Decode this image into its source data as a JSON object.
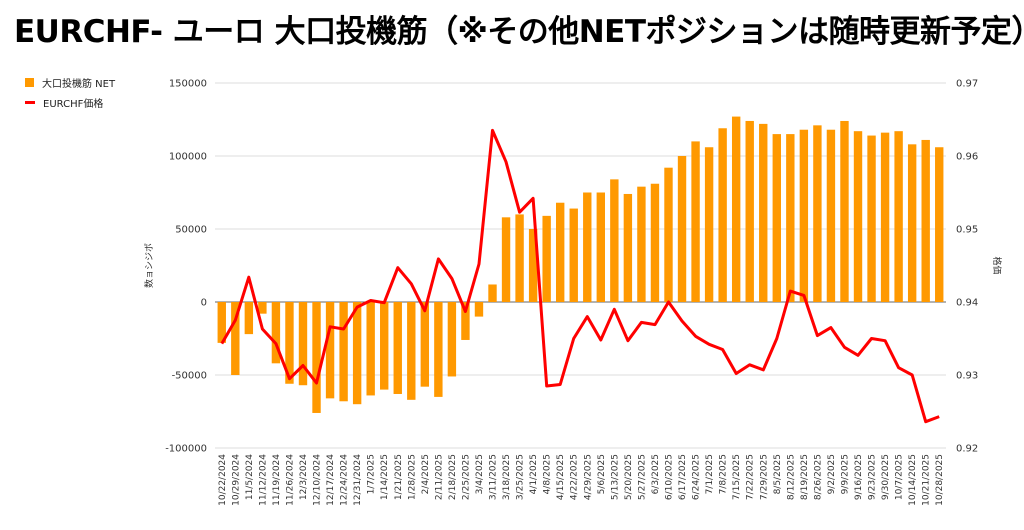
{
  "title": "EURCHF- ユーロ 大口投機筋（※その他NETポジションは随時更新予定）",
  "chart_data": {
    "type": "bar+line",
    "title": "EURCHF- ユーロ 大口投機筋（※その他NETポジションは随時更新予定）",
    "legend": [
      {
        "name": "大口投機筋  NET",
        "color": "#ff9900",
        "kind": "bar"
      },
      {
        "name": "EURCHF価格",
        "color": "#ff0000",
        "kind": "line"
      }
    ],
    "legend_position": "top-left",
    "y_left_label": "数ョシジポ",
    "y_right_label": "格価",
    "y_left_range": [
      -100000,
      150000
    ],
    "y_left_ticks": [
      "150000",
      "100000",
      "50000",
      "0",
      "-50000",
      "-100000"
    ],
    "y_right_range": [
      0.92,
      0.97
    ],
    "y_right_ticks": [
      "0.97",
      "0.96",
      "0.95",
      "0.94",
      "0.93",
      "0.92"
    ],
    "x_labels": [
      "10/22/2024",
      "10/29/2024",
      "11/5/2024",
      "11/12/2024",
      "11/19/2024",
      "11/26/2024",
      "12/3/2024",
      "12/10/2024",
      "12/17/2024",
      "12/24/2024",
      "12/31/2024",
      "1/7/2025",
      "1/14/2025",
      "1/21/2025",
      "1/28/2025",
      "2/4/2025",
      "2/11/2025",
      "2/18/2025",
      "2/25/2025",
      "3/4/2025",
      "3/11/2025",
      "3/18/2025",
      "3/25/2025",
      "4/1/2025",
      "4/8/2025",
      "4/15/2025",
      "4/22/2025",
      "4/29/2025",
      "5/6/2025",
      "5/13/2025",
      "5/20/2025",
      "5/27/2025",
      "6/3/2025",
      "6/10/2025",
      "6/17/2025",
      "6/24/2025",
      "7/1/2025",
      "7/8/2025",
      "7/15/2025",
      "7/22/2025",
      "7/29/2025",
      "8/5/2025",
      "8/12/2025",
      "8/19/2025",
      "8/26/2025",
      "9/2/2025",
      "9/9/2025",
      "9/16/2025",
      "9/23/2025",
      "9/30/2025",
      "10/7/2025",
      "10/14/2025",
      "10/21/2025",
      "10/28/2025"
    ],
    "positions": [
      -28000,
      -50000,
      -22000,
      -8000,
      -42000,
      -56000,
      -57000,
      -76000,
      -66000,
      -68000,
      -70000,
      -64000,
      -60000,
      -63000,
      -67000,
      -58000,
      -65000,
      -51000,
      -26000,
      -10000,
      12000,
      58000,
      60000,
      50000,
      59000,
      68000,
      64000,
      75000,
      75000,
      84000,
      74000,
      79000,
      81000,
      92000,
      100000,
      110000,
      106000,
      119000,
      127000,
      124000,
      122000,
      115000,
      115000,
      118000,
      121000,
      118000,
      124000,
      117000,
      114000,
      116000,
      117000,
      108000,
      111000,
      106000
    ],
    "prices": [
      0.9343,
      0.9375,
      0.9434,
      0.9363,
      0.9343,
      0.9295,
      0.9313,
      0.9289,
      0.9366,
      0.9363,
      0.9393,
      0.9402,
      0.9399,
      0.9447,
      0.9425,
      0.9388,
      0.9459,
      0.9432,
      0.9387,
      0.9452,
      0.9635,
      0.9592,
      0.9523,
      0.9542,
      0.9285,
      0.9287,
      0.935,
      0.938,
      0.9348,
      0.939,
      0.9347,
      0.9372,
      0.9369,
      0.94,
      0.9374,
      0.9353,
      0.9342,
      0.9335,
      0.9302,
      0.9314,
      0.9307,
      0.935,
      0.9415,
      0.9409,
      0.9354,
      0.9365,
      0.9338,
      0.9327,
      0.935,
      0.9347,
      0.931,
      0.93,
      0.9236,
      0.9243
    ]
  }
}
